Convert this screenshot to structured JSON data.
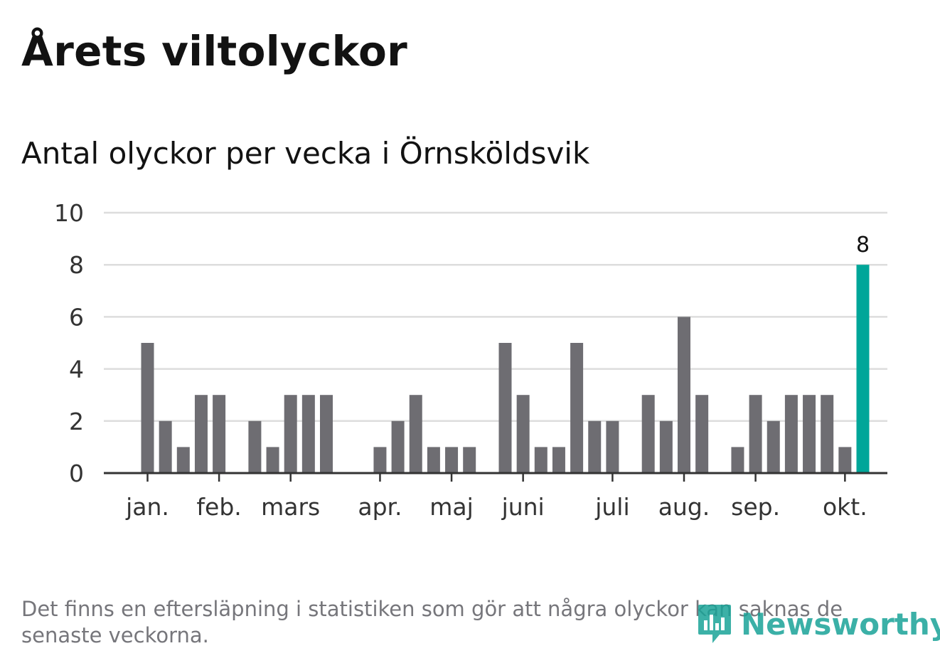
{
  "title": "Årets viltolyckor",
  "subtitle": "Antal olyckor per vecka i Örnsköldsvik",
  "footnote": "Det finns en eftersläpning i statistiken som gör att några olyckor kan saknas de senaste veckorna.",
  "brand": {
    "name": "Newsworthy",
    "icon": "newsworthy-logo-icon",
    "color": "#1aa398"
  },
  "colors": {
    "bar": "#6e6d72",
    "highlight": "#00a699",
    "grid": "#dddddd",
    "axis": "#333333"
  },
  "chart_data": {
    "type": "bar",
    "title": "Antal olyckor per vecka i Örnsköldsvik",
    "ylim": [
      0,
      10
    ],
    "yticks": [
      "0",
      "2",
      "4",
      "6",
      "8",
      "10"
    ],
    "grid": true,
    "legend": "none",
    "values": [
      5,
      2,
      1,
      3,
      3,
      0,
      2,
      1,
      3,
      3,
      3,
      0,
      0,
      1,
      2,
      3,
      1,
      1,
      1,
      0,
      5,
      3,
      1,
      1,
      5,
      2,
      2,
      0,
      3,
      2,
      6,
      3,
      0,
      1,
      3,
      2,
      3,
      3,
      3,
      1,
      8
    ],
    "highlight_index": 40,
    "data_labels": [
      {
        "index": 40,
        "text": "8"
      }
    ],
    "month_ticks": [
      {
        "label": "jan.",
        "week_index": 0
      },
      {
        "label": "feb.",
        "week_index": 4
      },
      {
        "label": "mars",
        "week_index": 8
      },
      {
        "label": "apr.",
        "week_index": 13
      },
      {
        "label": "maj",
        "week_index": 17
      },
      {
        "label": "juni",
        "week_index": 21
      },
      {
        "label": "juli",
        "week_index": 26
      },
      {
        "label": "aug.",
        "week_index": 30
      },
      {
        "label": "sep.",
        "week_index": 34
      },
      {
        "label": "okt.",
        "week_index": 39
      }
    ]
  }
}
